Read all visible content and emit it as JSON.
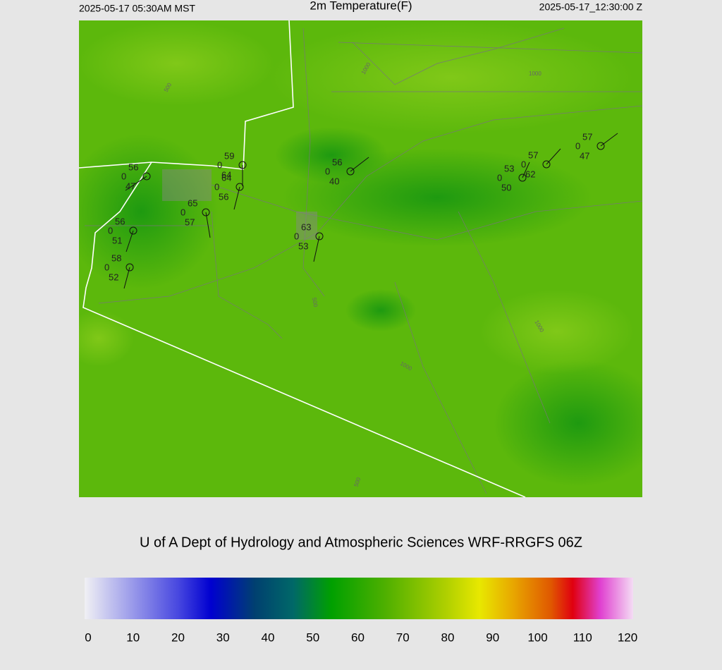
{
  "header": {
    "local_time": "2025-05-17 05:30AM MST",
    "title": "2m Temperature(F)",
    "utc_time": "2025-05-17_12:30:00 Z"
  },
  "map": {
    "stations": [
      {
        "temp": 56,
        "cloud": 0,
        "dew": 47
      },
      {
        "temp": 59,
        "cloud": 0,
        "dew": 64
      },
      {
        "temp": 64,
        "cloud": 0,
        "dew": 56
      },
      {
        "temp": 65,
        "cloud": 0,
        "dew": 57
      },
      {
        "temp": 56,
        "cloud": 0,
        "dew": 51
      },
      {
        "temp": 58,
        "cloud": 0,
        "dew": 52
      },
      {
        "temp": 63,
        "cloud": 0,
        "dew": 53
      },
      {
        "temp": 56,
        "cloud": 0,
        "dew": 40
      },
      {
        "temp": 53,
        "cloud": 0,
        "dew": 50
      },
      {
        "temp": 57,
        "cloud": 0,
        "dew": 62
      },
      {
        "temp": 57,
        "cloud": 0,
        "dew": 47
      }
    ],
    "contour_labels": [
      "500",
      "1000",
      "1000",
      "1000",
      "1000",
      "500",
      "500"
    ]
  },
  "credit": "U of A Dept of Hydrology and Atmospheric Sciences WRF-RRGFS 06Z",
  "colorbar": {
    "ticks": [
      0,
      10,
      20,
      30,
      40,
      50,
      60,
      70,
      80,
      90,
      100,
      110,
      120
    ]
  }
}
